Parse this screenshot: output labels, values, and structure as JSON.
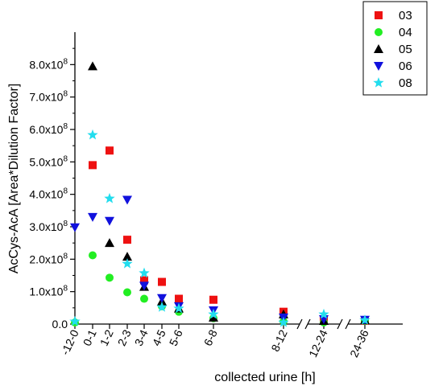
{
  "chart_data": {
    "type": "scatter",
    "xlabel": "collected urine [h]",
    "ylabel": "AcCys-AcA [Area*Dilution Factor]",
    "y_ticks": [
      {
        "value": 0,
        "label": "0.0"
      },
      {
        "value": 100000000,
        "label": "1.0x10",
        "exp": "8"
      },
      {
        "value": 200000000,
        "label": "2.0x10",
        "exp": "8"
      },
      {
        "value": 300000000,
        "label": "3.0x10",
        "exp": "8"
      },
      {
        "value": 400000000,
        "label": "4.0x10",
        "exp": "8"
      },
      {
        "value": 500000000,
        "label": "5.0x10",
        "exp": "8"
      },
      {
        "value": 600000000,
        "label": "6.0x10",
        "exp": "8"
      },
      {
        "value": 700000000,
        "label": "7.0x10",
        "exp": "8"
      },
      {
        "value": 800000000,
        "label": "8.0x10",
        "exp": "8"
      }
    ],
    "ylim": [
      0,
      900000000
    ],
    "categories": [
      "-12-0",
      "0-1",
      "1-2",
      "2-3",
      "3-4",
      "4-5",
      "5-6",
      "6-8",
      "8-12",
      "12-24",
      "24-36"
    ],
    "axis_breaks": [
      "between 8-12 and 12-24",
      "between 12-24 and 24-36"
    ],
    "legend_position": "top-right",
    "series": [
      {
        "name": "03",
        "marker": "square",
        "color": "#ee1111",
        "values": [
          null,
          490000000,
          535000000,
          260000000,
          135000000,
          130000000,
          78000000,
          75000000,
          38000000,
          12000000,
          10000000
        ]
      },
      {
        "name": "04",
        "marker": "circle",
        "color": "#22ee22",
        "values": [
          5000000,
          212000000,
          143000000,
          98000000,
          78000000,
          55000000,
          38000000,
          18000000,
          8000000,
          5000000,
          10000000
        ]
      },
      {
        "name": "05",
        "marker": "triangle-up",
        "color": "#000000",
        "values": [
          null,
          795000000,
          250000000,
          208000000,
          115000000,
          70000000,
          48000000,
          20000000,
          30000000,
          10000000,
          12000000
        ]
      },
      {
        "name": "06",
        "marker": "triangle-down",
        "color": "#1111dd",
        "values": [
          298000000,
          330000000,
          318000000,
          383000000,
          118000000,
          80000000,
          55000000,
          42000000,
          20000000,
          15000000,
          13000000
        ]
      },
      {
        "name": "08",
        "marker": "star",
        "color": "#22ddee",
        "values": [
          8000000,
          583000000,
          387000000,
          186000000,
          157000000,
          52000000,
          48000000,
          30000000,
          5000000,
          30000000,
          12000000
        ]
      }
    ]
  }
}
